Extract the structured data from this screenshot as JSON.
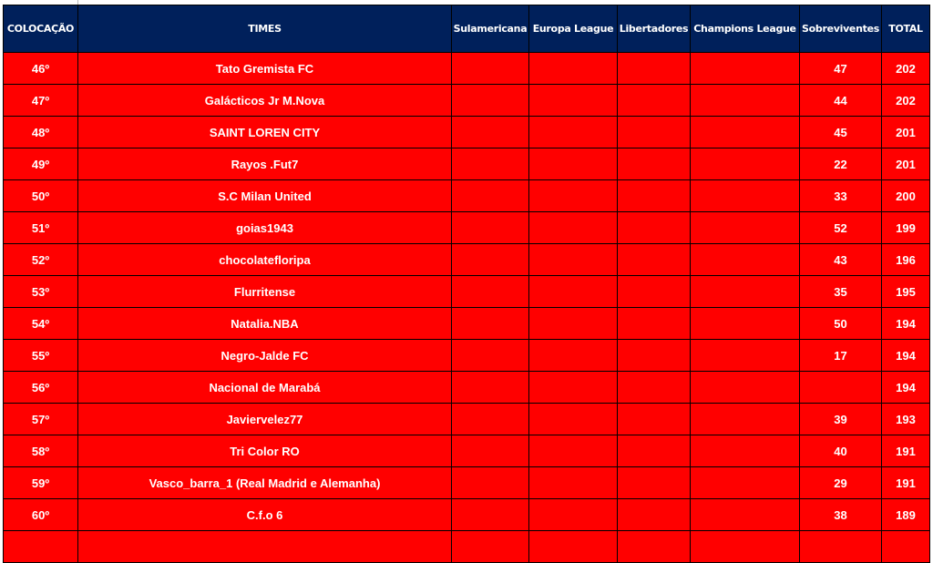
{
  "table": {
    "headers": [
      "COLOCAÇÃO",
      "TIMES",
      "Sulamericana",
      "Europa League",
      "Libertadores",
      "Champions League",
      "Sobreviventes",
      "TOTAL"
    ],
    "rows": [
      {
        "pos": "46º",
        "team": "Tato Gremista FC",
        "sula": "",
        "europa": "",
        "liberta": "",
        "champions": "",
        "sobreviventes": "47",
        "total": "202"
      },
      {
        "pos": "47º",
        "team": "Galácticos Jr M.Nova",
        "sula": "",
        "europa": "",
        "liberta": "",
        "champions": "",
        "sobreviventes": "44",
        "total": "202"
      },
      {
        "pos": "48º",
        "team": "SAINT LOREN CITY",
        "sula": "",
        "europa": "",
        "liberta": "",
        "champions": "",
        "sobreviventes": "45",
        "total": "201"
      },
      {
        "pos": "49º",
        "team": "Rayos .Fut7",
        "sula": "",
        "europa": "",
        "liberta": "",
        "champions": "",
        "sobreviventes": "22",
        "total": "201"
      },
      {
        "pos": "50º",
        "team": "S.C Milan United",
        "sula": "",
        "europa": "",
        "liberta": "",
        "champions": "",
        "sobreviventes": "33",
        "total": "200"
      },
      {
        "pos": "51º",
        "team": "goias1943",
        "sula": "",
        "europa": "",
        "liberta": "",
        "champions": "",
        "sobreviventes": "52",
        "total": "199"
      },
      {
        "pos": "52º",
        "team": "chocolatefloripa",
        "sula": "",
        "europa": "",
        "liberta": "",
        "champions": "",
        "sobreviventes": "43",
        "total": "196"
      },
      {
        "pos": "53º",
        "team": "Flurritense",
        "sula": "",
        "europa": "",
        "liberta": "",
        "champions": "",
        "sobreviventes": "35",
        "total": "195"
      },
      {
        "pos": "54º",
        "team": "Natalia.NBA",
        "sula": "",
        "europa": "",
        "liberta": "",
        "champions": "",
        "sobreviventes": "50",
        "total": "194"
      },
      {
        "pos": "55º",
        "team": "Negro-Jalde FC",
        "sula": "",
        "europa": "",
        "liberta": "",
        "champions": "",
        "sobreviventes": "17",
        "total": "194"
      },
      {
        "pos": "56º",
        "team": "Nacional de Marabá",
        "sula": "",
        "europa": "",
        "liberta": "",
        "champions": "",
        "sobreviventes": "",
        "total": "194"
      },
      {
        "pos": "57º",
        "team": "Javiervelez77",
        "sula": "",
        "europa": "",
        "liberta": "",
        "champions": "",
        "sobreviventes": "39",
        "total": "193"
      },
      {
        "pos": "58º",
        "team": "Tri Color RO",
        "sula": "",
        "europa": "",
        "liberta": "",
        "champions": "",
        "sobreviventes": "40",
        "total": "191"
      },
      {
        "pos": "59º",
        "team": "Vasco_barra_1 (Real Madrid e Alemanha)",
        "sula": "",
        "europa": "",
        "liberta": "",
        "champions": "",
        "sobreviventes": "29",
        "total": "191"
      },
      {
        "pos": "60º",
        "team": "C.f.o 6",
        "sula": "",
        "europa": "",
        "liberta": "",
        "champions": "",
        "sobreviventes": "38",
        "total": "189"
      },
      {
        "pos": "",
        "team": "",
        "sula": "",
        "europa": "",
        "liberta": "",
        "champions": "",
        "sobreviventes": "",
        "total": ""
      }
    ]
  },
  "colors": {
    "header_bg": "#00205b",
    "row_bg": "#ff0000",
    "text": "#ffffff"
  }
}
